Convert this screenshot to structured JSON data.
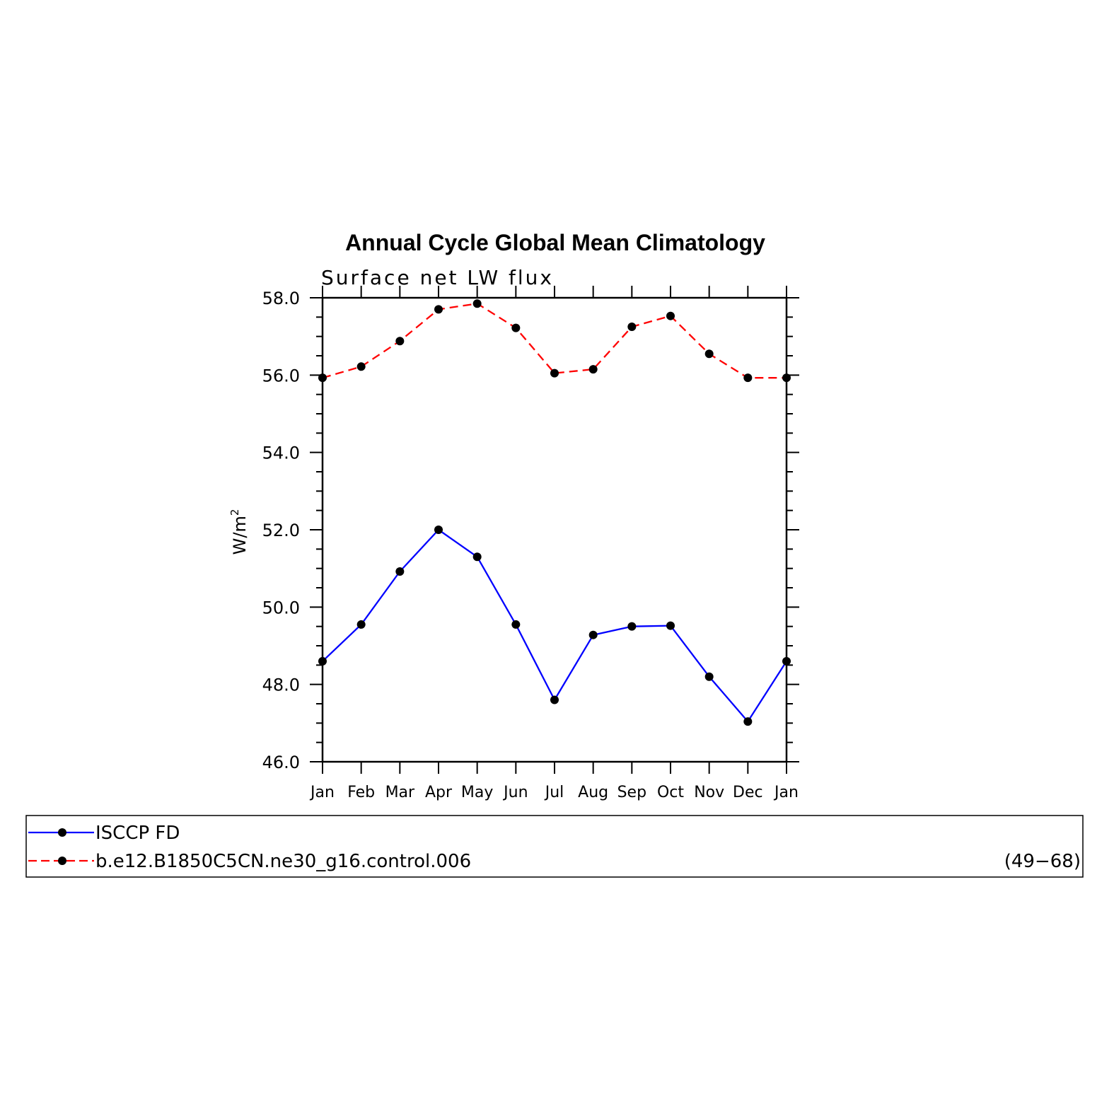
{
  "chart_data": {
    "type": "line",
    "title": "Annual Cycle Global Mean Climatology",
    "subtitle": "Surface net LW flux",
    "ylabel": "W/m",
    "ylabel_superscript": "2",
    "ylim": [
      46.0,
      58.0
    ],
    "yticks": [
      "46.0",
      "48.0",
      "50.0",
      "52.0",
      "54.0",
      "56.0",
      "58.0"
    ],
    "categories": [
      "Jan",
      "Feb",
      "Mar",
      "Apr",
      "May",
      "Jun",
      "Jul",
      "Aug",
      "Sep",
      "Oct",
      "Nov",
      "Dec",
      "Jan"
    ],
    "series": [
      {
        "name": "ISCCP FD",
        "color": "#0000ff",
        "dash": false,
        "values": [
          48.6,
          49.55,
          50.92,
          52.0,
          51.3,
          49.55,
          47.6,
          49.28,
          49.5,
          49.52,
          48.2,
          47.04,
          48.6
        ]
      },
      {
        "name": "b.e12.B1850C5CN.ne30_g16.control.006",
        "color": "#ff0000",
        "dash": true,
        "values": [
          55.93,
          56.22,
          56.88,
          57.7,
          57.85,
          57.22,
          56.05,
          56.15,
          57.25,
          57.53,
          56.55,
          55.93,
          55.93
        ]
      }
    ],
    "legend_note": "(49−68)",
    "legend_position": "bottom"
  }
}
